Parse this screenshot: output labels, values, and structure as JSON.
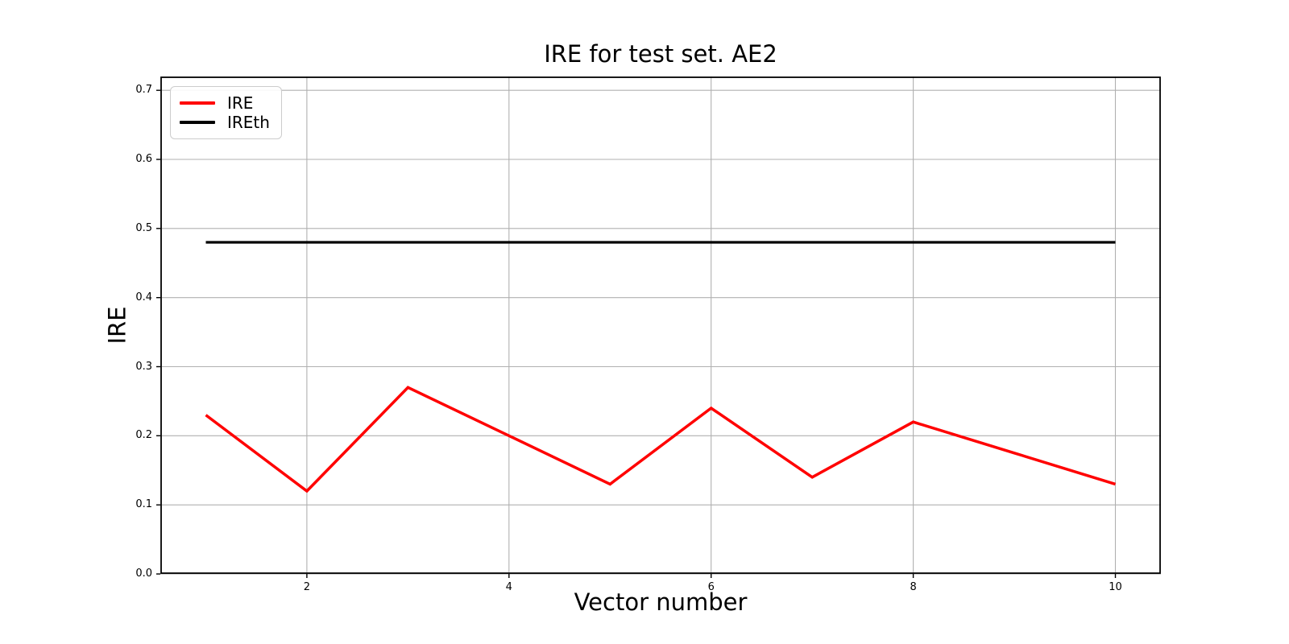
{
  "chart_data": {
    "type": "line",
    "title": "IRE for test set. AE2",
    "xlabel": "Vector number",
    "ylabel": "IRE",
    "x": [
      1,
      2,
      3,
      4,
      5,
      6,
      7,
      8,
      9,
      10
    ],
    "series": [
      {
        "name": "IRE",
        "color": "#ff0000",
        "linewidth": 3.5,
        "values": [
          0.23,
          0.12,
          0.27,
          0.2,
          0.13,
          0.24,
          0.14,
          0.22,
          0.175,
          0.13
        ]
      },
      {
        "name": "IREth",
        "color": "#000000",
        "linewidth": 3.3,
        "values": [
          0.48,
          0.48,
          0.48,
          0.48,
          0.48,
          0.48,
          0.48,
          0.48,
          0.48,
          0.48
        ]
      }
    ],
    "xlim": [
      0.55,
      10.45
    ],
    "ylim": [
      0,
      0.72
    ],
    "xticks": {
      "values": [
        2,
        4,
        6,
        8,
        10
      ],
      "labels": [
        "2",
        "4",
        "6",
        "8",
        "10"
      ]
    },
    "yticks": {
      "values": [
        0.0,
        0.1,
        0.2,
        0.3,
        0.4,
        0.5,
        0.6,
        0.7
      ],
      "labels": [
        "0.0",
        "0.1",
        "0.2",
        "0.3",
        "0.4",
        "0.5",
        "0.6",
        "0.7"
      ]
    },
    "grid": true,
    "grid_color": "#b0b0b0",
    "spine_color": "#000000",
    "background": "#ffffff",
    "legend": {
      "position": "upper-left",
      "entries": [
        {
          "label": "IRE",
          "color": "#ff0000"
        },
        {
          "label": "IREth",
          "color": "#000000"
        }
      ]
    }
  }
}
